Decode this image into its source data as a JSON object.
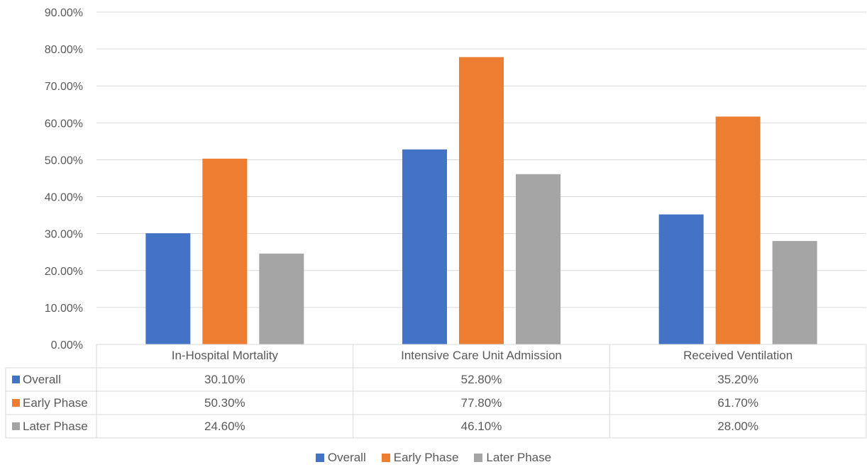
{
  "chart_data": {
    "type": "bar",
    "categories": [
      "In-Hospital Mortality",
      "Intensive Care Unit Admission",
      "Received Ventilation"
    ],
    "series": [
      {
        "name": "Overall",
        "values": [
          30.1,
          52.8,
          35.2
        ],
        "labels": [
          "30.10%",
          "52.80%",
          "35.20%"
        ],
        "color": "#4472C4"
      },
      {
        "name": "Early Phase",
        "values": [
          50.3,
          77.8,
          61.7
        ],
        "labels": [
          "50.30%",
          "77.80%",
          "61.70%"
        ],
        "color": "#ED7D31"
      },
      {
        "name": "Later Phase",
        "values": [
          24.6,
          46.1,
          28.0
        ],
        "labels": [
          "24.60%",
          "46.10%",
          "28.00%"
        ],
        "color": "#A5A5A5"
      }
    ],
    "ylim": [
      0,
      90
    ],
    "yticks": [
      "0.00%",
      "10.00%",
      "20.00%",
      "30.00%",
      "40.00%",
      "50.00%",
      "60.00%",
      "70.00%",
      "80.00%",
      "90.00%"
    ],
    "grid": true,
    "data_table": true,
    "legend_position": "bottom"
  }
}
